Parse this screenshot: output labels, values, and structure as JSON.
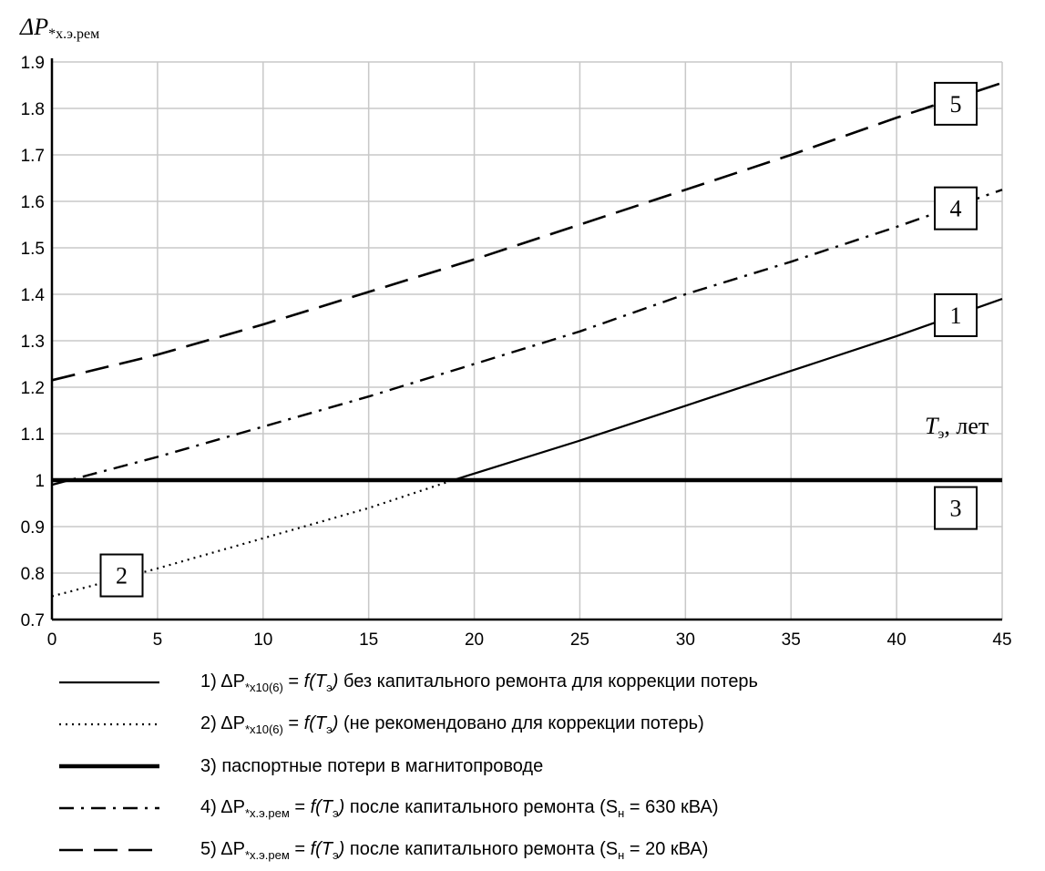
{
  "chart_data": {
    "type": "line",
    "ylabel": "ΔP",
    "ylabel_sub": "*х.э.рем",
    "xlabel": "T",
    "xlabel_sub": "э",
    "xlabel_suffix": ", лет",
    "xlim": [
      0,
      45
    ],
    "ylim": [
      0.7,
      1.9
    ],
    "xticks": [
      0,
      5,
      10,
      15,
      20,
      25,
      30,
      35,
      40,
      45
    ],
    "yticks": [
      "0.7",
      "0.8",
      "0.9",
      "1",
      "1.1",
      "1.2",
      "1.3",
      "1.4",
      "1.5",
      "1.6",
      "1.7",
      "1.8",
      "1.9"
    ],
    "grid": true,
    "series": [
      {
        "id": "1",
        "style": "solid",
        "x": [
          19,
          25,
          30,
          35,
          40,
          45
        ],
        "y": [
          1.0,
          1.085,
          1.16,
          1.235,
          1.31,
          1.39
        ]
      },
      {
        "id": "2",
        "style": "dotted",
        "x": [
          0,
          5,
          10,
          15,
          19
        ],
        "y": [
          0.75,
          0.81,
          0.875,
          0.94,
          1.0
        ]
      },
      {
        "id": "3",
        "style": "thick",
        "x": [
          0,
          45
        ],
        "y": [
          1.0,
          1.0
        ]
      },
      {
        "id": "4",
        "style": "dashdot",
        "x": [
          0,
          5,
          10,
          15,
          20,
          25,
          30,
          35,
          40,
          45
        ],
        "y": [
          0.99,
          1.05,
          1.115,
          1.18,
          1.25,
          1.32,
          1.4,
          1.47,
          1.545,
          1.625
        ]
      },
      {
        "id": "5",
        "style": "dashed",
        "x": [
          0,
          5,
          10,
          15,
          20,
          25,
          30,
          35,
          40,
          45
        ],
        "y": [
          1.215,
          1.27,
          1.335,
          1.405,
          1.475,
          1.55,
          1.625,
          1.7,
          1.78,
          1.855
        ]
      }
    ],
    "callouts": [
      {
        "label": "5",
        "x": 42.8,
        "y": 1.81
      },
      {
        "label": "4",
        "x": 42.8,
        "y": 1.585
      },
      {
        "label": "1",
        "x": 42.8,
        "y": 1.355
      },
      {
        "label": "3",
        "x": 42.8,
        "y": 0.94
      },
      {
        "label": "2",
        "x": 3.3,
        "y": 0.795
      }
    ],
    "legend": [
      {
        "style": "solid",
        "num": "1) ",
        "sym": "ΔP",
        "sub": "*х10(6)",
        "mid": " = ",
        "fn": "f(T",
        "fn_sub": "э",
        "fn_end": ")",
        "text": " без капитального ремонта для коррекции потерь"
      },
      {
        "style": "dotted",
        "num": "2) ",
        "sym": "ΔP",
        "sub": "*х10(6)",
        "mid": " = ",
        "fn": "f(T",
        "fn_sub": "э",
        "fn_end": ")",
        "text": " (не рекомендовано для коррекции потерь)"
      },
      {
        "style": "thick",
        "num": "3) ",
        "sym": "",
        "sub": "",
        "mid": "",
        "fn": "",
        "fn_sub": "",
        "fn_end": "",
        "text": "паспортные потери в магнитопроводе"
      },
      {
        "style": "dashdot",
        "num": "4) ",
        "sym": "ΔP",
        "sub": "*х.э.рем",
        "mid": " = ",
        "fn": "f(T",
        "fn_sub": "э",
        "fn_end": ")",
        "text": " после капитального ремонта (S",
        "text_sub": "н",
        "text_end": " = 630 кВА)"
      },
      {
        "style": "dashed",
        "num": "5) ",
        "sym": "ΔP",
        "sub": "*х.э.рем",
        "mid": " = ",
        "fn": "f(T",
        "fn_sub": "э",
        "fn_end": ")",
        "text": " после капитального ремонта (S",
        "text_sub": "н",
        "text_end": " = 20 кВА)"
      }
    ]
  }
}
